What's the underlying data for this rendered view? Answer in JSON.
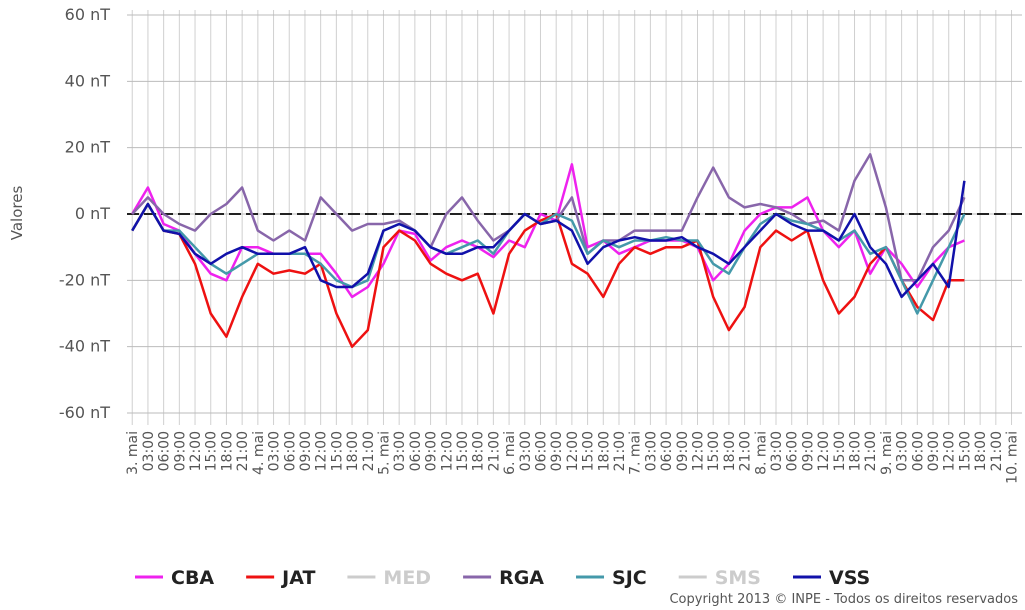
{
  "chart_data": {
    "type": "line",
    "y_label": "Valores",
    "copyright": "Copyright 2013 © INPE - Todos os direitos reservados",
    "xlim": [
      -1,
      170
    ],
    "ylim": [
      -60,
      60
    ],
    "yticks": [
      {
        "value": -60,
        "label": "-60 nT"
      },
      {
        "value": -40,
        "label": "-40 nT"
      },
      {
        "value": -20,
        "label": "-20 nT"
      },
      {
        "value": 0,
        "label": "0 nT"
      },
      {
        "value": 20,
        "label": "20 nT"
      },
      {
        "value": 40,
        "label": "40 nT"
      },
      {
        "value": 60,
        "label": "60 nT"
      }
    ],
    "xticks": [
      {
        "value": 0,
        "label": "3. mai"
      },
      {
        "value": 3,
        "label": "03:00"
      },
      {
        "value": 6,
        "label": "06:00"
      },
      {
        "value": 9,
        "label": "09:00"
      },
      {
        "value": 12,
        "label": "12:00"
      },
      {
        "value": 15,
        "label": "15:00"
      },
      {
        "value": 18,
        "label": "18:00"
      },
      {
        "value": 21,
        "label": "21:00"
      },
      {
        "value": 24,
        "label": "4. mai"
      },
      {
        "value": 27,
        "label": "03:00"
      },
      {
        "value": 30,
        "label": "06:00"
      },
      {
        "value": 33,
        "label": "09:00"
      },
      {
        "value": 36,
        "label": "12:00"
      },
      {
        "value": 39,
        "label": "15:00"
      },
      {
        "value": 42,
        "label": "18:00"
      },
      {
        "value": 45,
        "label": "21:00"
      },
      {
        "value": 48,
        "label": "5. mai"
      },
      {
        "value": 51,
        "label": "03:00"
      },
      {
        "value": 54,
        "label": "06:00"
      },
      {
        "value": 57,
        "label": "09:00"
      },
      {
        "value": 60,
        "label": "12:00"
      },
      {
        "value": 63,
        "label": "15:00"
      },
      {
        "value": 66,
        "label": "18:00"
      },
      {
        "value": 69,
        "label": "21:00"
      },
      {
        "value": 72,
        "label": "6. mai"
      },
      {
        "value": 75,
        "label": "03:00"
      },
      {
        "value": 78,
        "label": "06:00"
      },
      {
        "value": 81,
        "label": "09:00"
      },
      {
        "value": 84,
        "label": "12:00"
      },
      {
        "value": 87,
        "label": "15:00"
      },
      {
        "value": 90,
        "label": "18:00"
      },
      {
        "value": 93,
        "label": "21:00"
      },
      {
        "value": 96,
        "label": "7. mai"
      },
      {
        "value": 99,
        "label": "03:00"
      },
      {
        "value": 102,
        "label": "06:00"
      },
      {
        "value": 105,
        "label": "09:00"
      },
      {
        "value": 108,
        "label": "12:00"
      },
      {
        "value": 111,
        "label": "15:00"
      },
      {
        "value": 114,
        "label": "18:00"
      },
      {
        "value": 117,
        "label": "21:00"
      },
      {
        "value": 120,
        "label": "8. mai"
      },
      {
        "value": 123,
        "label": "03:00"
      },
      {
        "value": 126,
        "label": "06:00"
      },
      {
        "value": 129,
        "label": "09:00"
      },
      {
        "value": 132,
        "label": "12:00"
      },
      {
        "value": 135,
        "label": "15:00"
      },
      {
        "value": 138,
        "label": "18:00"
      },
      {
        "value": 141,
        "label": "21:00"
      },
      {
        "value": 144,
        "label": "9. mai"
      },
      {
        "value": 147,
        "label": "03:00"
      },
      {
        "value": 150,
        "label": "06:00"
      },
      {
        "value": 153,
        "label": "09:00"
      },
      {
        "value": 156,
        "label": "12:00"
      },
      {
        "value": 159,
        "label": "15:00"
      },
      {
        "value": 162,
        "label": "18:00"
      },
      {
        "value": 165,
        "label": "21:00"
      },
      {
        "value": 168,
        "label": "10. mai"
      }
    ],
    "hline": 0,
    "grid": true,
    "legend": "bottom",
    "x": [
      0,
      3,
      6,
      9,
      12,
      15,
      18,
      21,
      24,
      27,
      30,
      33,
      36,
      39,
      42,
      45,
      48,
      51,
      54,
      57,
      60,
      63,
      66,
      69,
      72,
      75,
      78,
      81,
      84,
      87,
      90,
      93,
      96,
      99,
      102,
      105,
      108,
      111,
      114,
      117,
      120,
      123,
      126,
      129,
      132,
      135,
      138,
      141,
      144,
      147,
      150,
      153,
      156,
      159
    ],
    "series": [
      {
        "name": "CBA",
        "color": "#ee22ee",
        "values": [
          0,
          8,
          -3,
          -5,
          -12,
          -18,
          -20,
          -10,
          -10,
          -12,
          -12,
          -12,
          -12,
          -18,
          -25,
          -22,
          -15,
          -5,
          -6,
          -14,
          -10,
          -8,
          -10,
          -13,
          -8,
          -10,
          0,
          -2,
          15,
          -10,
          -8,
          -12,
          -10,
          -8,
          -8,
          -8,
          -10,
          -20,
          -15,
          -5,
          0,
          2,
          2,
          5,
          -5,
          -10,
          -5,
          -18,
          -10,
          -15,
          -22,
          -15,
          -10,
          -8
        ]
      },
      {
        "name": "JAT",
        "color": "#ee1111",
        "values": [
          -5,
          3,
          -5,
          -6,
          -15,
          -30,
          -37,
          -25,
          -15,
          -18,
          -17,
          -18,
          -15,
          -30,
          -40,
          -35,
          -10,
          -5,
          -8,
          -15,
          -18,
          -20,
          -18,
          -30,
          -12,
          -5,
          -2,
          0,
          -15,
          -18,
          -25,
          -15,
          -10,
          -12,
          -10,
          -10,
          -8,
          -25,
          -35,
          -28,
          -10,
          -5,
          -8,
          -5,
          -20,
          -30,
          -25,
          -15,
          -10,
          -20,
          -28,
          -32,
          -20,
          -20
        ]
      },
      {
        "name": "MED",
        "color": "#cccccc",
        "values": [
          null,
          null,
          null,
          null,
          null,
          null,
          null,
          null,
          null,
          null,
          null,
          null,
          null,
          null,
          null,
          null,
          null,
          null,
          null,
          null,
          null,
          null,
          null,
          null,
          null,
          null,
          null,
          null,
          null,
          null,
          null,
          null,
          null,
          null,
          null,
          null,
          null,
          null,
          null,
          null,
          null,
          null,
          null,
          null,
          null,
          null,
          null,
          null,
          null,
          null,
          null,
          null,
          null,
          null
        ]
      },
      {
        "name": "RGA",
        "color": "#8866aa",
        "values": [
          0,
          5,
          0,
          -3,
          -5,
          0,
          3,
          8,
          -5,
          -8,
          -5,
          -8,
          5,
          0,
          -5,
          -3,
          -3,
          -2,
          -5,
          -10,
          0,
          5,
          -2,
          -8,
          -5,
          0,
          -3,
          -2,
          5,
          -12,
          -8,
          -8,
          -5,
          -5,
          -5,
          -5,
          5,
          14,
          5,
          2,
          3,
          2,
          0,
          -3,
          -2,
          -5,
          10,
          18,
          2,
          -20,
          -20,
          -10,
          -5,
          5
        ]
      },
      {
        "name": "SJC",
        "color": "#4499aa",
        "values": [
          -5,
          3,
          -5,
          -5,
          -10,
          -15,
          -18,
          -15,
          -12,
          -12,
          -12,
          -12,
          -15,
          -20,
          -22,
          -20,
          -5,
          -3,
          -5,
          -10,
          -12,
          -10,
          -8,
          -12,
          -5,
          0,
          -3,
          0,
          -2,
          -12,
          -8,
          -10,
          -8,
          -8,
          -7,
          -8,
          -8,
          -15,
          -18,
          -10,
          -3,
          0,
          -2,
          -3,
          -5,
          -8,
          -5,
          -12,
          -10,
          -20,
          -30,
          -20,
          -10,
          0
        ]
      },
      {
        "name": "SMS",
        "color": "#cccccc",
        "values": [
          null,
          null,
          null,
          null,
          null,
          null,
          null,
          null,
          null,
          null,
          null,
          null,
          null,
          null,
          null,
          null,
          null,
          null,
          null,
          null,
          null,
          null,
          null,
          null,
          null,
          null,
          null,
          null,
          null,
          null,
          null,
          null,
          null,
          null,
          null,
          null,
          null,
          null,
          null,
          null,
          null,
          null,
          null,
          null,
          null,
          null,
          null,
          null,
          null,
          null,
          null,
          null,
          null,
          null
        ]
      },
      {
        "name": "VSS",
        "color": "#1111aa",
        "values": [
          -5,
          3,
          -5,
          -6,
          -12,
          -15,
          -12,
          -10,
          -12,
          -12,
          -12,
          -10,
          -20,
          -22,
          -22,
          -18,
          -5,
          -3,
          -5,
          -10,
          -12,
          -12,
          -10,
          -10,
          -5,
          0,
          -3,
          -2,
          -5,
          -15,
          -10,
          -8,
          -7,
          -8,
          -8,
          -7,
          -10,
          -12,
          -15,
          -10,
          -5,
          0,
          -3,
          -5,
          -5,
          -8,
          0,
          -10,
          -15,
          -25,
          -20,
          -15,
          -22,
          10
        ]
      }
    ]
  }
}
